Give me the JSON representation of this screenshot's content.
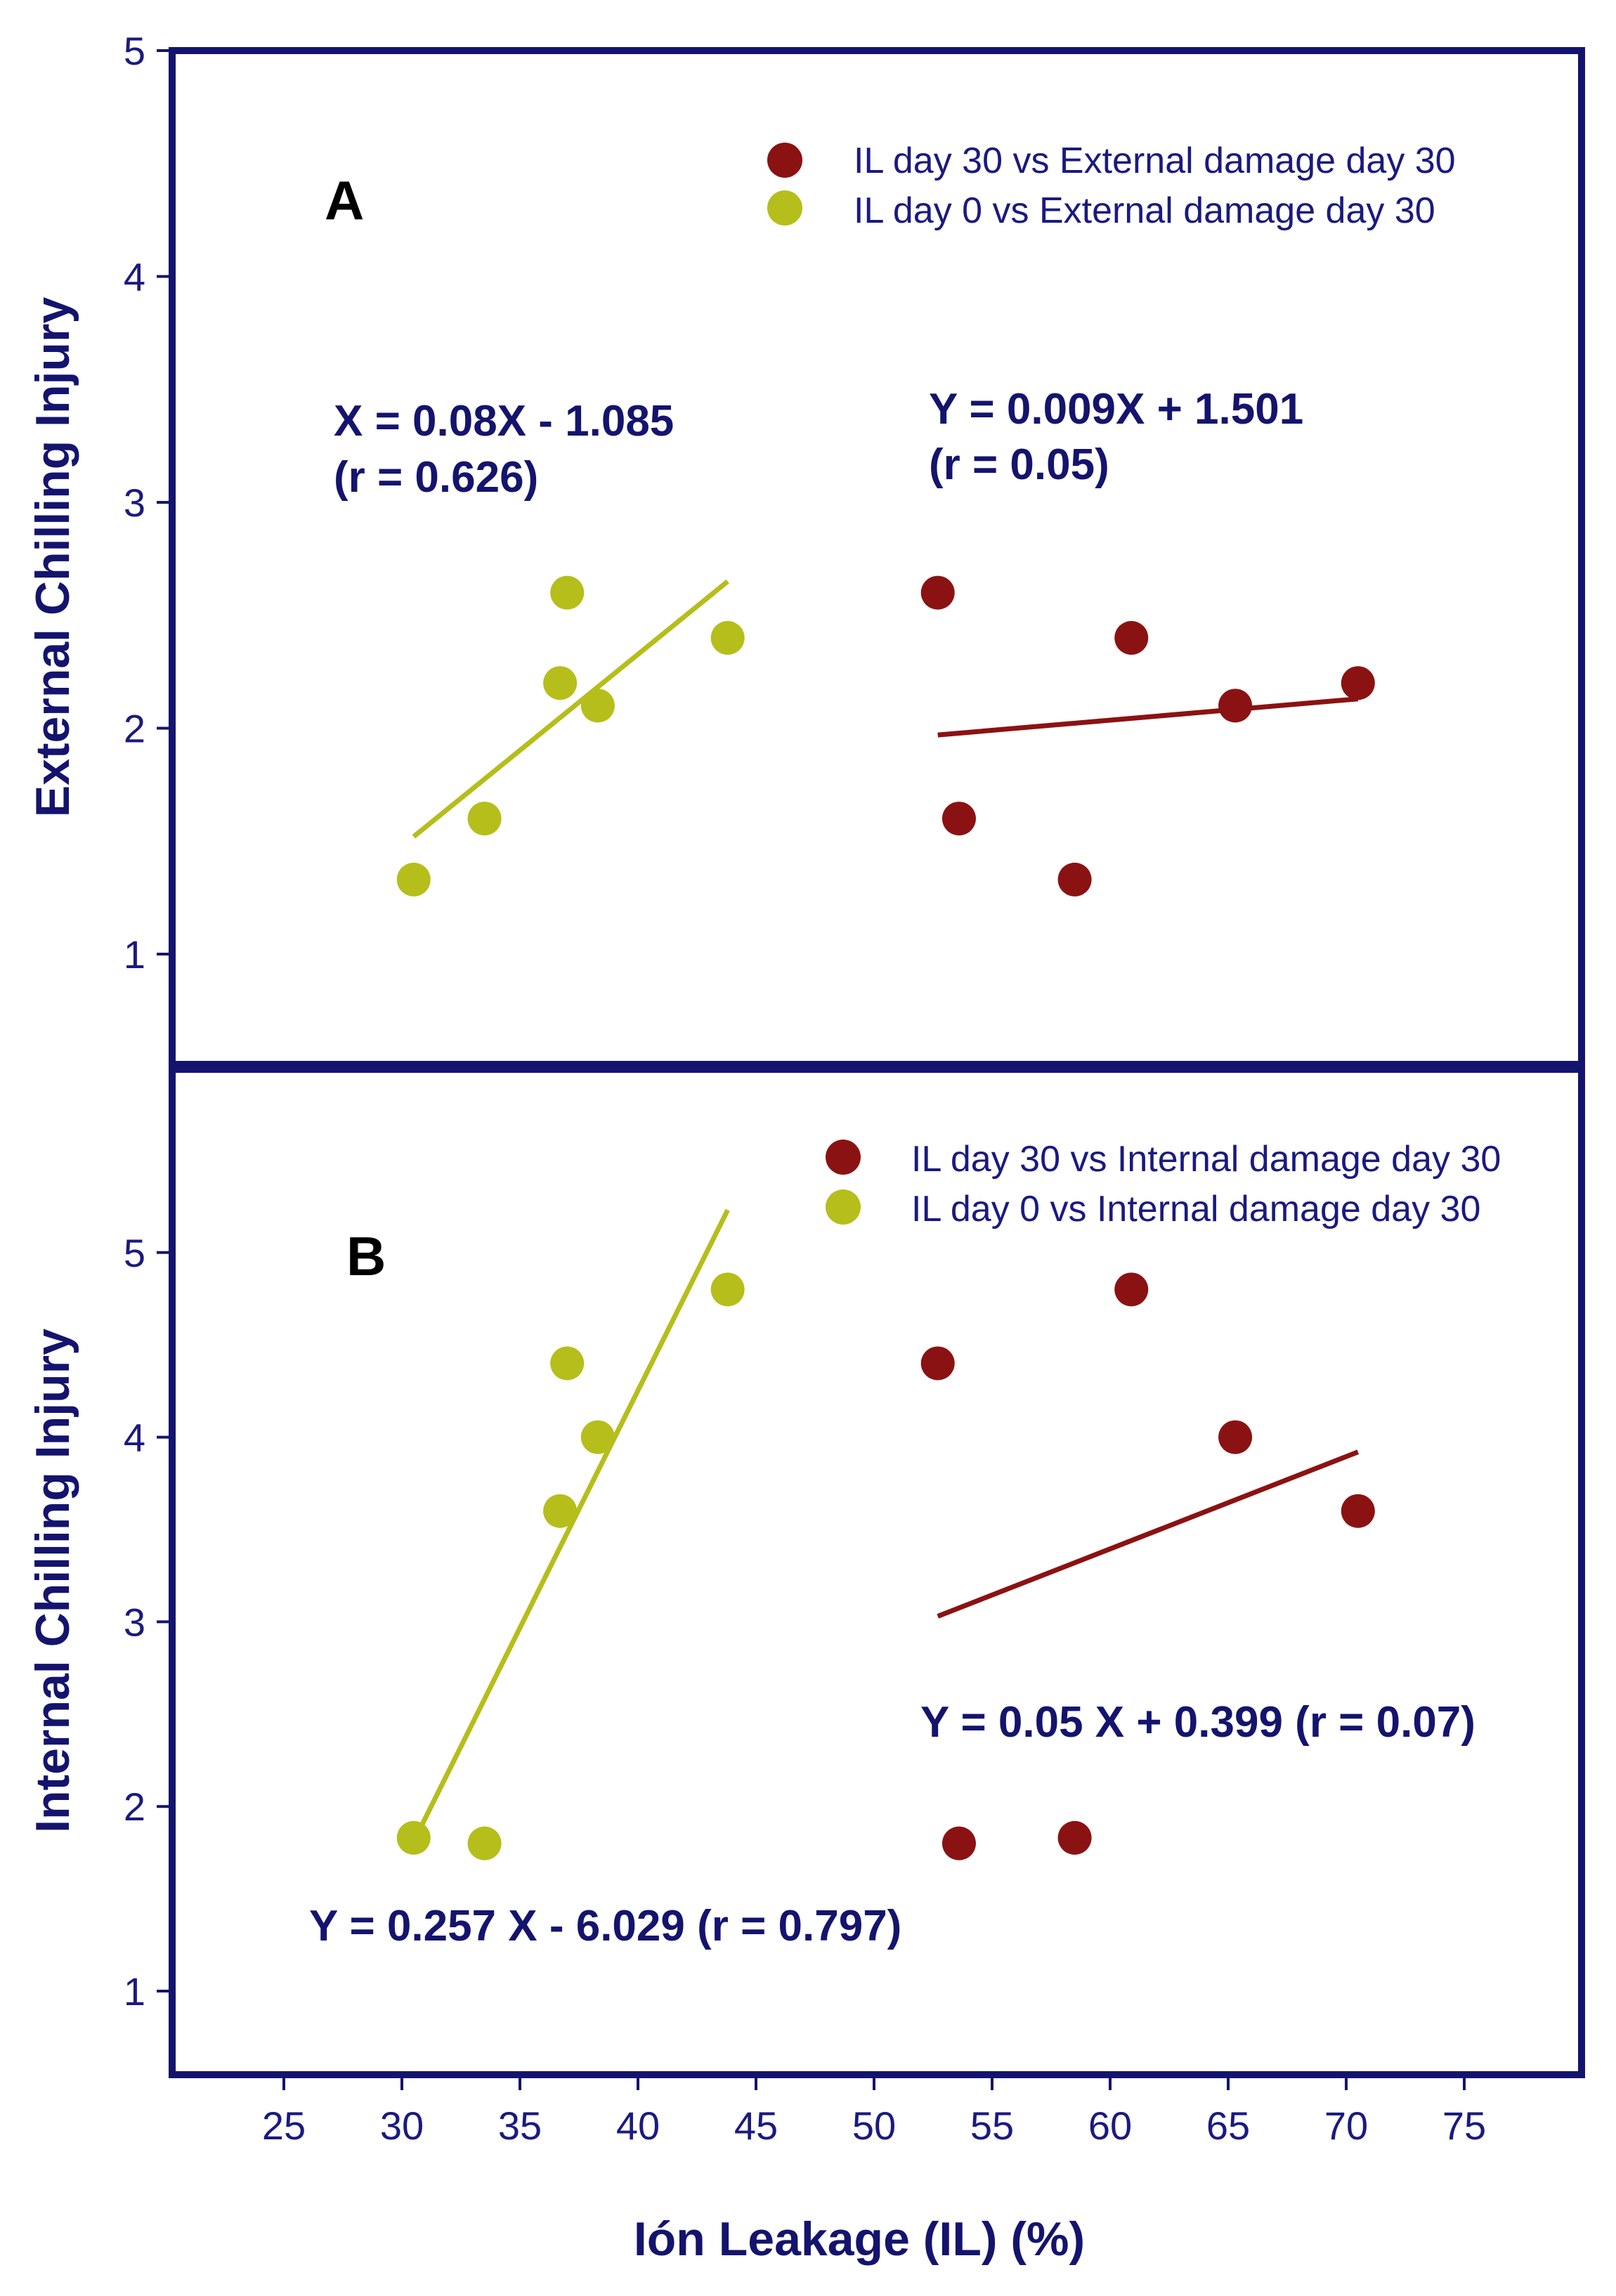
{
  "chart_data": [
    {
      "panel": "A",
      "type": "scatter",
      "ylabel": "External Chilling Injury",
      "xlabel": "Ión Leakage  (IL) (%)",
      "xlim": [
        20,
        80
      ],
      "ylim": [
        0.5,
        5
      ],
      "yticks": [
        1,
        2,
        3,
        4,
        5
      ],
      "xticks": [
        25,
        30,
        35,
        40,
        45,
        50,
        55,
        60,
        65,
        70,
        75
      ],
      "legend": {
        "placement": "top-right"
      },
      "series": [
        {
          "name": "IL day 30 vs External damage day 30",
          "color": "#8b1212",
          "points": [
            [
              52.7,
              2.6
            ],
            [
              53.6,
              1.6
            ],
            [
              58.5,
              1.33
            ],
            [
              60.9,
              2.4
            ],
            [
              65.3,
              2.1
            ],
            [
              70.5,
              2.2
            ]
          ],
          "fit": {
            "x": [
              52.7,
              70.5
            ],
            "y": [
              1.97,
              2.13
            ]
          }
        },
        {
          "name": "IL day 0 vs External damage day 30",
          "color": "#b5be1a",
          "points": [
            [
              30.5,
              1.33
            ],
            [
              33.5,
              1.6
            ],
            [
              36.7,
              2.2
            ],
            [
              37.0,
              2.6
            ],
            [
              38.3,
              2.1
            ],
            [
              43.8,
              2.4
            ]
          ],
          "fit": {
            "x": [
              30.5,
              43.8
            ],
            "y": [
              1.52,
              2.65
            ]
          }
        }
      ],
      "annotations": [
        {
          "key": "eq_green_1",
          "text": "X = 0.08X - 1.085"
        },
        {
          "key": "eq_green_2",
          "text": "(r = 0.626)"
        },
        {
          "key": "eq_red_1",
          "text": "Y = 0.009X + 1.501"
        },
        {
          "key": "eq_red_2",
          "text": "(r = 0.05)"
        }
      ]
    },
    {
      "panel": "B",
      "type": "scatter",
      "ylabel": "Internal Chilling Injury",
      "xlabel": "Ión Leakage  (IL) (%)",
      "xlim": [
        20,
        80
      ],
      "ylim": [
        0.5,
        6
      ],
      "yticks": [
        1,
        2,
        3,
        4,
        5
      ],
      "xticks": [
        25,
        30,
        35,
        40,
        45,
        50,
        55,
        60,
        65,
        70,
        75
      ],
      "legend": {
        "placement": "top-right"
      },
      "series": [
        {
          "name": "IL day 30 vs Internal damage day 30",
          "color": "#8b1212",
          "points": [
            [
              52.7,
              4.4
            ],
            [
              53.6,
              1.8
            ],
            [
              58.5,
              1.83
            ],
            [
              60.9,
              4.8
            ],
            [
              65.3,
              4.0
            ],
            [
              70.5,
              3.6
            ]
          ],
          "fit": {
            "x": [
              52.7,
              70.5
            ],
            "y": [
              3.03,
              3.92
            ]
          }
        },
        {
          "name": "IL day 0 vs Internal damage day 30",
          "color": "#b5be1a",
          "points": [
            [
              30.5,
              1.83
            ],
            [
              33.5,
              1.8
            ],
            [
              36.7,
              3.6
            ],
            [
              37.0,
              4.4
            ],
            [
              38.3,
              4.0
            ],
            [
              43.8,
              4.8
            ]
          ],
          "fit": {
            "x": [
              30.5,
              43.8
            ],
            "y": [
              1.81,
              5.23
            ]
          }
        }
      ],
      "annotations": [
        {
          "key": "eq_red",
          "text": "Y = 0.05 X + 0.399 (r = 0.07)"
        },
        {
          "key": "eq_green",
          "text": "Y = 0.257 X - 6.029 (r = 0.797)"
        }
      ]
    }
  ],
  "ui": {
    "panel_a_letter": "A",
    "panel_b_letter": "B",
    "x_axis_title": "Ión Leakage  (IL) (%)",
    "frame_color": "#14146e"
  }
}
